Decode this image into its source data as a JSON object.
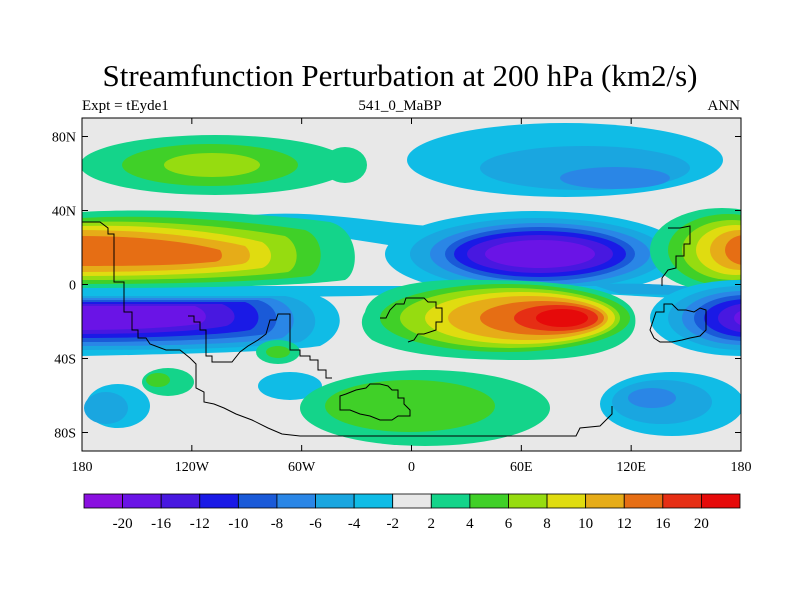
{
  "title": "Streamfunction Perturbation at 200 hPa (km2/s)",
  "subtitle": {
    "left": "Expt = tEyde1",
    "center": "541_0_MaBP",
    "right": "ANN"
  },
  "axes": {
    "lat_ticks": [
      "80N",
      "40N",
      "0",
      "40S",
      "80S"
    ],
    "lon_ticks": [
      "180",
      "120W",
      "60W",
      "0",
      "60E",
      "120E",
      "180"
    ]
  },
  "colorbar": {
    "labels": [
      "-20",
      "-16",
      "-12",
      "-10",
      "-8",
      "-6",
      "-4",
      "-2",
      "2",
      "4",
      "6",
      "8",
      "10",
      "12",
      "16",
      "20"
    ],
    "colors": [
      "#8a10e0",
      "#6a14e6",
      "#4818e0",
      "#1a1ae6",
      "#1a5ad8",
      "#2a86e6",
      "#1aa6e0",
      "#10bce6",
      "#e8e8e8",
      "#14d48a",
      "#40d028",
      "#96dc10",
      "#e0dc10",
      "#e6ac18",
      "#e66e14",
      "#e62e14",
      "#e60a0a"
    ]
  },
  "colors": {
    "background": "#e8e8e8",
    "neg_4": "#10bce6",
    "neg_6": "#1aa6e0",
    "neg_8": "#2a86e6",
    "neg_10": "#1a5ad8",
    "neg_12": "#1a1ae6",
    "neg_16": "#4818e0",
    "neg_20": "#6a14e6",
    "neg_max": "#8a10e0",
    "pos_4": "#14d48a",
    "pos_6": "#40d028",
    "pos_8": "#96dc10",
    "pos_10": "#e0dc10",
    "pos_12": "#e6ac18",
    "pos_16": "#e66e14",
    "pos_20": "#e62e14",
    "pos_max": "#e60a0a"
  }
}
